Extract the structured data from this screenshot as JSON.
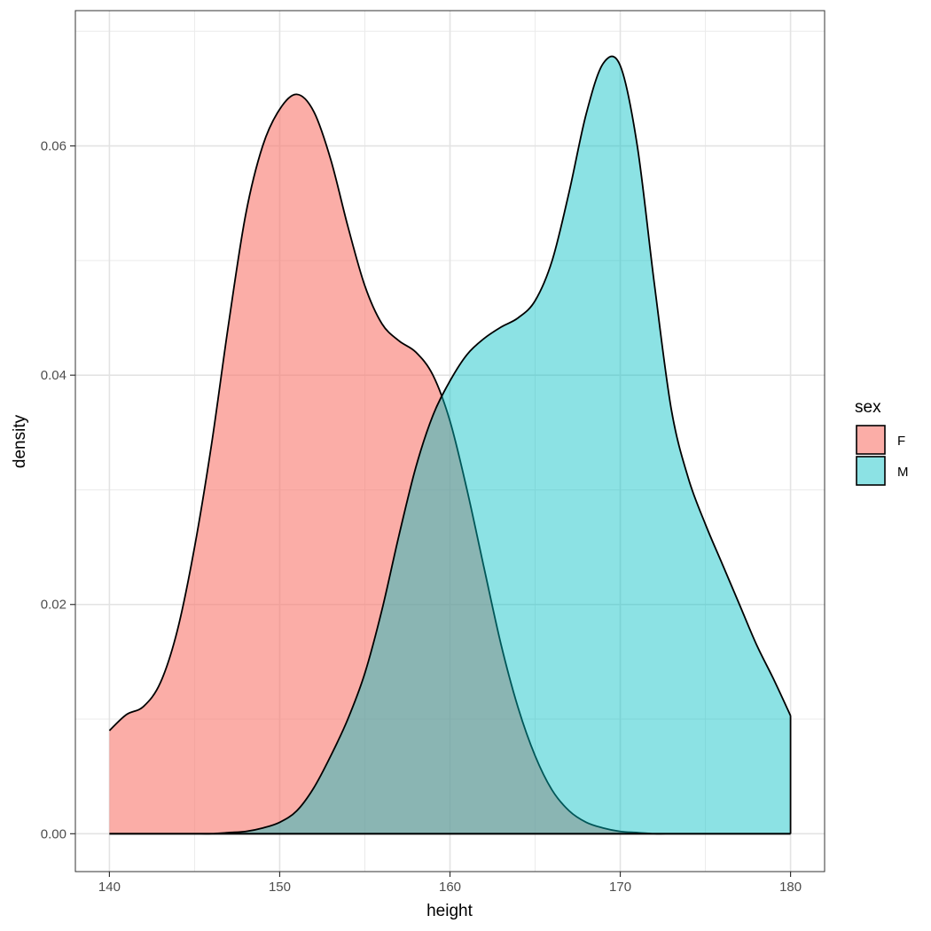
{
  "chart_data": {
    "type": "area",
    "subtype": "density",
    "xlabel": "height",
    "ylabel": "density",
    "xlim": [
      138,
      182
    ],
    "ylim": [
      -0.0033,
      0.0718
    ],
    "x_ticks": [
      140,
      150,
      160,
      170,
      180
    ],
    "x_tick_labels": [
      "140",
      "150",
      "160",
      "170",
      "180"
    ],
    "y_ticks": [
      0.0,
      0.02,
      0.04,
      0.06
    ],
    "y_tick_labels": [
      "0.00",
      "0.02",
      "0.04",
      "0.06"
    ],
    "grid": true,
    "theme": "bw",
    "legend": {
      "title": "sex",
      "position": "right"
    },
    "series": [
      {
        "name": "F",
        "color": "#F8766D",
        "fill_opacity": 0.6,
        "x": [
          140,
          141,
          142,
          143,
          144,
          145,
          146,
          147,
          148,
          149,
          150,
          151,
          152,
          153,
          154,
          155,
          156,
          157,
          158,
          159,
          160,
          161,
          162,
          163,
          164,
          165,
          166,
          167,
          168,
          169,
          170,
          171,
          172,
          173,
          174,
          175,
          176,
          177,
          178,
          179,
          180
        ],
        "values": [
          0.009,
          0.0104,
          0.0111,
          0.0132,
          0.0178,
          0.025,
          0.034,
          0.0445,
          0.054,
          0.06,
          0.0632,
          0.0645,
          0.063,
          0.0588,
          0.053,
          0.0478,
          0.0445,
          0.043,
          0.042,
          0.04,
          0.036,
          0.03,
          0.0232,
          0.0165,
          0.011,
          0.0068,
          0.0038,
          0.002,
          0.001,
          0.0005,
          0.0002,
          0.0001,
          0.0,
          0.0,
          0.0,
          0.0,
          0.0,
          0.0,
          0.0,
          0.0,
          0.0
        ]
      },
      {
        "name": "M",
        "color": "#00BFC4",
        "fill_opacity": 0.45,
        "x": [
          140,
          141,
          142,
          143,
          144,
          145,
          146,
          147,
          148,
          149,
          150,
          151,
          152,
          153,
          154,
          155,
          156,
          157,
          158,
          159,
          160,
          161,
          162,
          163,
          164,
          165,
          166,
          167,
          168,
          169,
          170,
          171,
          172,
          173,
          174,
          175,
          176,
          177,
          178,
          179,
          180
        ],
        "values": [
          0.0,
          0.0,
          0.0,
          0.0,
          0.0,
          0.0,
          0.0,
          0.0001,
          0.0002,
          0.0005,
          0.001,
          0.002,
          0.004,
          0.0068,
          0.01,
          0.014,
          0.0195,
          0.026,
          0.032,
          0.0365,
          0.0395,
          0.0418,
          0.0432,
          0.0442,
          0.045,
          0.0465,
          0.05,
          0.056,
          0.0628,
          0.0672,
          0.067,
          0.06,
          0.048,
          0.037,
          0.031,
          0.027,
          0.0235,
          0.02,
          0.0165,
          0.0135,
          0.0103
        ]
      }
    ]
  }
}
